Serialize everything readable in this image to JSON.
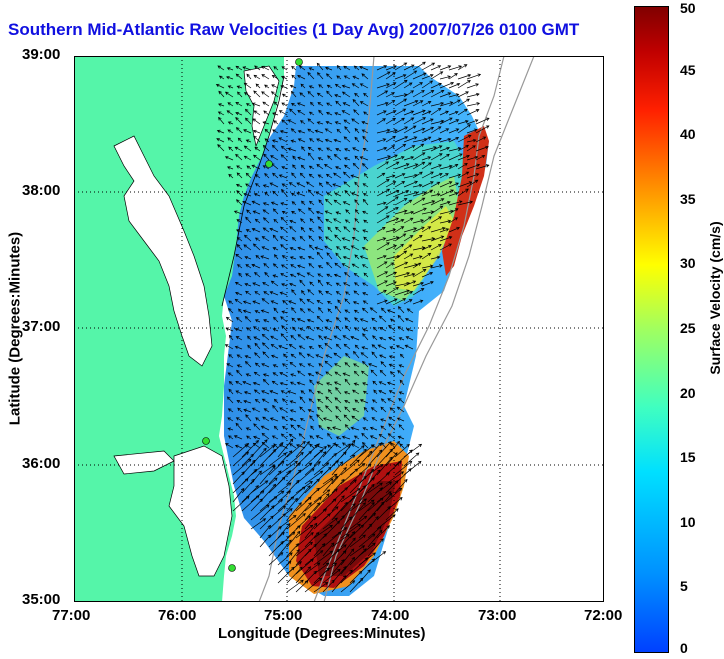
{
  "title": "Southern Mid-Atlantic Raw Velocities (1 Day Avg) 2007/07/26 0100 GMT",
  "xlabel": "Longitude (Degrees:Minutes)",
  "ylabel": "Latitude (Degrees:Minutes)",
  "x_ticks": [
    "77:00",
    "76:00",
    "75:00",
    "74:00",
    "73:00",
    "72:00"
  ],
  "y_ticks": [
    "39:00",
    "38:00",
    "37:00",
    "36:00",
    "35:00"
  ],
  "colorbar": {
    "label": "Surface Velocity (cm/s)",
    "ticks": [
      "0",
      "5",
      "10",
      "15",
      "20",
      "25",
      "30",
      "35",
      "40",
      "45",
      "50"
    ],
    "range": [
      0,
      50
    ],
    "colormap": "jet"
  },
  "map": {
    "lon_range": [
      -77,
      -72
    ],
    "lat_range": [
      35,
      39
    ],
    "land_color": "#55f5a9",
    "station_color": "#33dd33",
    "bathymetry_color": "#999999"
  }
}
